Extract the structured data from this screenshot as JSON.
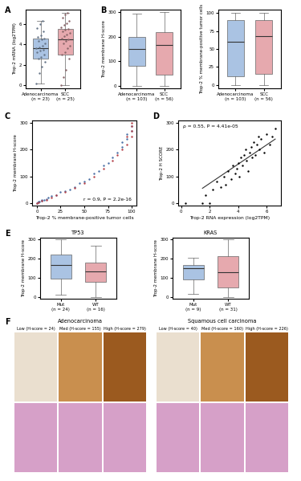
{
  "panel_labels": [
    "A",
    "B",
    "C",
    "D",
    "E",
    "F"
  ],
  "chart_data": [
    {
      "type": "box",
      "ylabel": "Trop-2 mRNA (log2TPM)",
      "categories": [
        "Adenocarcinoma\n(n = 23)",
        "SCC\n(n = 25)"
      ],
      "colors": [
        "#aac3e3",
        "#e6a9ae"
      ],
      "boxes": [
        {
          "q1": 2.6,
          "median": 3.6,
          "q3": 4.6,
          "whislo": 0.2,
          "whishi": 6.3
        },
        {
          "q1": 3.0,
          "median": 4.5,
          "q3": 5.5,
          "whislo": 0.0,
          "whishi": 7.1
        }
      ],
      "points": [
        [
          0.2,
          1.2,
          1.8,
          2.3,
          2.6,
          2.8,
          3.0,
          3.2,
          3.4,
          3.5,
          3.6,
          3.7,
          3.9,
          4.1,
          4.3,
          4.5,
          4.6,
          4.7,
          4.9,
          5.3,
          5.6,
          6.0,
          6.3
        ],
        [
          0.0,
          0.8,
          1.5,
          2.6,
          3.0,
          3.2,
          3.6,
          3.9,
          4.1,
          4.3,
          4.5,
          4.6,
          4.8,
          5.0,
          5.1,
          5.3,
          5.4,
          5.5,
          5.7,
          5.9,
          6.1,
          6.3,
          6.6,
          6.9,
          7.1
        ]
      ],
      "ylim": [
        -0.3,
        7.4
      ],
      "yticks": [
        0,
        2,
        4,
        6
      ]
    },
    {
      "type": "box",
      "ylabel": "Trop-2 membrane H-score",
      "categories": [
        "Adenocarcinoma\n(n = 103)",
        "SCC\n(n = 56)"
      ],
      "colors": [
        "#aac3e3",
        "#e6a9ae"
      ],
      "boxes": [
        {
          "q1": 80,
          "median": 150,
          "q3": 200,
          "whislo": 0,
          "whishi": 295
        },
        {
          "q1": 45,
          "median": 165,
          "q3": 220,
          "whislo": 0,
          "whishi": 300
        }
      ],
      "ylim": [
        -10,
        310
      ],
      "yticks": [
        0,
        100,
        200,
        300
      ]
    },
    {
      "type": "box",
      "ylabel": "Trop-2 % membrane-positive tumor cells",
      "categories": [
        "Adenocarcinoma\n(n = 103)",
        "SCC\n(n = 56)"
      ],
      "colors": [
        "#aac3e3",
        "#e6a9ae"
      ],
      "boxes": [
        {
          "q1": 12,
          "median": 60,
          "q3": 90,
          "whislo": 0,
          "whishi": 100
        },
        {
          "q1": 15,
          "median": 68,
          "q3": 90,
          "whislo": 0,
          "whishi": 100
        }
      ],
      "ylim": [
        -5,
        105
      ],
      "yticks": [
        0,
        25,
        50,
        75,
        100
      ]
    },
    {
      "type": "scatter",
      "xlabel": "Trop-2 % membrane-positive tumor cells",
      "ylabel": "Trop-2 membrane H-score",
      "annotation": "r = 0.9, P = 2.2e-16",
      "series": [
        {
          "color": "#4a6fa5",
          "x": [
            0,
            1,
            2,
            3,
            5,
            5,
            8,
            10,
            12,
            15,
            20,
            25,
            30,
            35,
            40,
            45,
            50,
            55,
            60,
            65,
            70,
            75,
            80,
            85,
            90,
            90,
            95,
            95,
            100,
            100
          ],
          "values": [
            0,
            2,
            4,
            5,
            8,
            10,
            12,
            15,
            20,
            25,
            30,
            40,
            45,
            50,
            60,
            75,
            80,
            90,
            110,
            120,
            140,
            150,
            170,
            190,
            210,
            230,
            240,
            260,
            270,
            290
          ]
        },
        {
          "color": "#b5424a",
          "x": [
            0,
            2,
            5,
            10,
            15,
            20,
            30,
            40,
            50,
            60,
            70,
            80,
            85,
            90,
            95,
            95,
            100,
            100,
            100,
            100
          ],
          "values": [
            0,
            3,
            8,
            12,
            20,
            30,
            40,
            55,
            75,
            100,
            130,
            160,
            180,
            200,
            220,
            250,
            250,
            270,
            290,
            300
          ]
        }
      ],
      "xlim": [
        -5,
        105
      ],
      "xticks": [
        0,
        25,
        50,
        75,
        100
      ],
      "ylim": [
        -10,
        310
      ],
      "yticks": [
        0,
        100,
        200,
        300
      ]
    },
    {
      "type": "scatter",
      "xlabel": "Trop-2 RNA expression (log2TPM)",
      "ylabel": "Trop-2 H SCORE",
      "annotation": "ρ = 0.55, P = 4.41e-05",
      "series": [
        {
          "color": "#000000",
          "x": [
            0.3,
            1.5,
            1.7,
            2.0,
            2.2,
            2.5,
            2.8,
            3.0,
            3.1,
            3.3,
            3.5,
            3.6,
            3.8,
            3.9,
            4.0,
            4.1,
            4.2,
            4.3,
            4.4,
            4.5,
            4.6,
            4.7,
            4.8,
            4.9,
            5.0,
            5.1,
            5.2,
            5.3,
            5.4,
            5.5,
            5.6,
            5.8,
            6.0,
            6.2,
            6.4,
            6.6
          ],
          "values": [
            0,
            0,
            30,
            0,
            50,
            80,
            60,
            100,
            70,
            120,
            90,
            140,
            110,
            130,
            150,
            100,
            170,
            140,
            180,
            200,
            160,
            120,
            190,
            210,
            170,
            230,
            180,
            220,
            250,
            200,
            240,
            190,
            260,
            220,
            250,
            280
          ]
        },
        {
          "type": "line",
          "color": "#333333",
          "x": [
            1.5,
            6.6
          ],
          "values": [
            55,
            240
          ]
        }
      ],
      "xlim": [
        -0.2,
        7
      ],
      "xticks": [
        0,
        2,
        4,
        6
      ],
      "ylim": [
        -10,
        310
      ],
      "yticks": [
        0,
        100,
        200,
        300
      ]
    },
    {
      "type": "box",
      "title": "TP53",
      "ylabel": "Trop-2 membrane H-score",
      "categories": [
        "Mut\n(n = 24)",
        "WT\n(n = 16)"
      ],
      "colors": [
        "#aac3e3",
        "#e6a9ae"
      ],
      "boxes": [
        {
          "q1": 95,
          "median": 165,
          "q3": 220,
          "whislo": 10,
          "whishi": 300
        },
        {
          "q1": 80,
          "median": 135,
          "q3": 180,
          "whislo": 0,
          "whishi": 270
        }
      ],
      "ylim": [
        -10,
        310
      ],
      "yticks": [
        0,
        100,
        200,
        300
      ]
    },
    {
      "type": "box",
      "title": "KRAS",
      "ylabel": "Trop-2 membrane H-score",
      "categories": [
        "Mut\n(n = 9)",
        "WT\n(n = 31)"
      ],
      "colors": [
        "#aac3e3",
        "#e6a9ae"
      ],
      "boxes": [
        {
          "q1": 90,
          "median": 150,
          "q3": 165,
          "whislo": 15,
          "whishi": 205
        },
        {
          "q1": 50,
          "median": 130,
          "q3": 215,
          "whislo": 0,
          "whishi": 300
        }
      ],
      "ylim": [
        -10,
        310
      ],
      "yticks": [
        0,
        100,
        200,
        300
      ]
    }
  ],
  "panel_F": [
    {
      "title": "Adenocarcinoma",
      "images": [
        "Low (H-score = 24)",
        "Med (H-score = 155)",
        "High (H-score = 279)"
      ]
    },
    {
      "title": "Squamous cell carcinoma",
      "images": [
        "Low (H-score = 40)",
        "Med (H-score = 160)",
        "High (H-score = 226)"
      ]
    }
  ]
}
